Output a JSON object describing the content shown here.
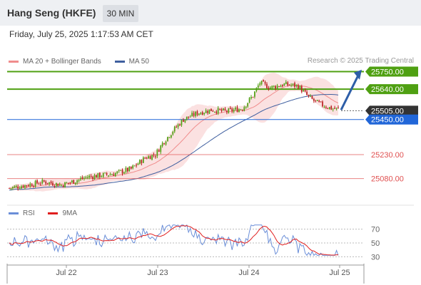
{
  "header": {
    "title": "Hang Seng (HKFE)",
    "timeframe": "30 MIN"
  },
  "datetime": "Friday, July 25, 2025 1:17:53 AM CET",
  "legend": {
    "bollinger_label": "MA 20 + Bollinger Bands",
    "bollinger_color": "#f08c8c",
    "ma50_label": "MA 50",
    "ma50_color": "#3f5f9f"
  },
  "copyright": "Research © 2025 Trading Central",
  "rsi_legend": {
    "rsi_label": "RSI",
    "rsi_color": "#6a8ed8",
    "ma_label": "9MA",
    "ma_color": "#e01e1e"
  },
  "chart_data": {
    "type": "candlestick",
    "x_ticks": [
      "Jul 22",
      "Jul 23",
      "Jul 24",
      "Jul 25"
    ],
    "price_range": [
      24940,
      25770
    ],
    "levels": [
      {
        "value": 25750,
        "label": "25750.00",
        "type": "resistance",
        "color": "#4fa012"
      },
      {
        "value": 25640,
        "label": "25640.00",
        "type": "resistance",
        "color": "#4fa012"
      },
      {
        "value": 25505,
        "label": "25505.00",
        "type": "current",
        "color": "#333333"
      },
      {
        "value": 25450,
        "label": "25450.00",
        "type": "pivot",
        "color": "#2166d8"
      },
      {
        "value": 25230,
        "label": "25230.00",
        "type": "support",
        "color": "#e05050"
      },
      {
        "value": 25080,
        "label": "25080.00",
        "type": "support",
        "color": "#e05050"
      }
    ],
    "rsi": {
      "ticks": [
        70,
        50,
        30
      ],
      "range": [
        20,
        82
      ]
    }
  }
}
